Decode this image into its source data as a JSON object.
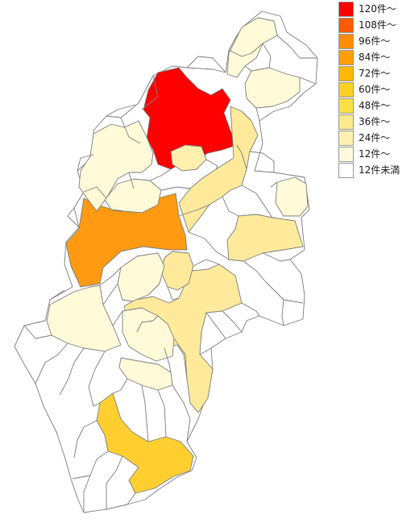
{
  "legend": {
    "items": [
      {
        "label": "120件～",
        "color": "#ff0000"
      },
      {
        "label": "108件～",
        "color": "#ff5a00"
      },
      {
        "label": "96件～",
        "color": "#ff8c00"
      },
      {
        "label": "84件～",
        "color": "#ffa000"
      },
      {
        "label": "72件～",
        "color": "#ffb900"
      },
      {
        "label": "60件～",
        "color": "#ffcf22"
      },
      {
        "label": "48件～",
        "color": "#ffe044"
      },
      {
        "label": "36件～",
        "color": "#ffe88e"
      },
      {
        "label": "24件～",
        "color": "#fff0b0"
      },
      {
        "label": "12件～",
        "color": "#fffadb"
      },
      {
        "label": "12件未満",
        "color": "#ffffff"
      }
    ]
  },
  "map": {
    "regions": [
      {
        "id": "nagano-city",
        "level": "120件～",
        "color": "#ff0000"
      },
      {
        "id": "matsumoto-city",
        "level": "96件～",
        "color": "#ff9a12"
      },
      {
        "id": "iida-city",
        "level": "60件～",
        "color": "#ffcf30"
      },
      {
        "id": "ina-komagane-area",
        "level": "36件～",
        "color": "#ffe99a"
      },
      {
        "id": "ueda-city",
        "level": "36件～",
        "color": "#ffe99a"
      },
      {
        "id": "saku-city",
        "level": "36件～",
        "color": "#ffe99a"
      },
      {
        "id": "suwa-area",
        "level": "36件～",
        "color": "#ffe99a"
      },
      {
        "id": "azumino-area",
        "level": "12件～",
        "color": "#fffad8"
      },
      {
        "id": "omachi-area",
        "level": "12件～",
        "color": "#fffad8"
      },
      {
        "id": "kiso-area",
        "level": "12件～",
        "color": "#fffad8"
      },
      {
        "id": "nakano-area",
        "level": "12件～",
        "color": "#fffad8"
      },
      {
        "id": "komoro-area",
        "level": "12件～",
        "color": "#fffad8"
      },
      {
        "id": "shiojiri-area",
        "level": "12件～",
        "color": "#fffad8"
      },
      {
        "id": "north-areas",
        "level": "12件～",
        "color": "#fffad8"
      },
      {
        "id": "others",
        "level": "12件未満",
        "color": "#ffffff"
      }
    ]
  }
}
